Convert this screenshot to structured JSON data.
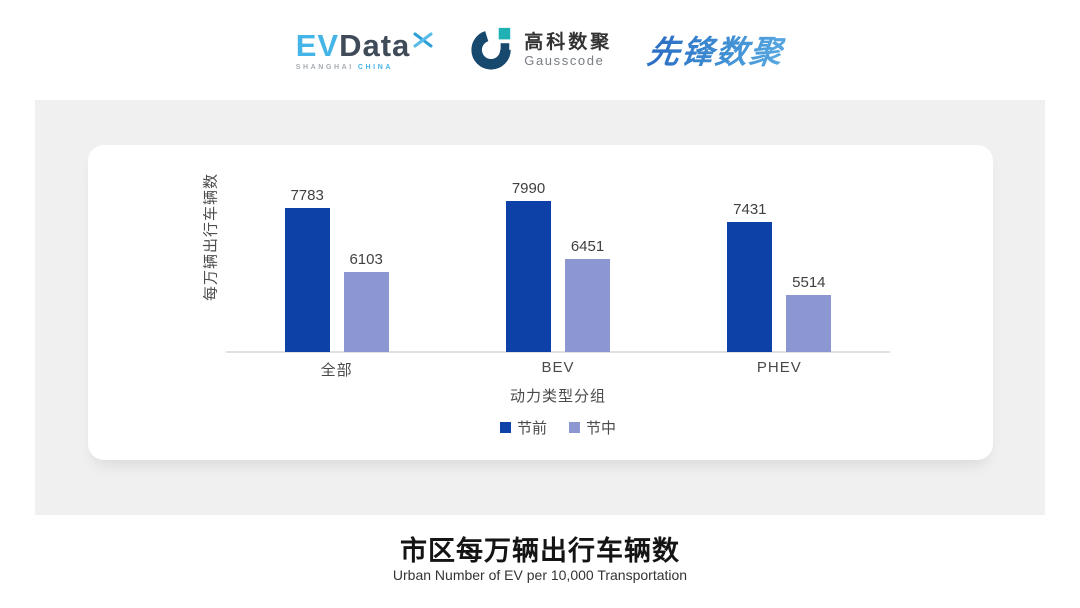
{
  "header": {
    "evdata_logo": {
      "ev": "EV",
      "data": "Data",
      "sub_left": "SHANGHAI",
      "sub_right": "CHINA",
      "accent_color": "#45b5e7",
      "dark_color": "#3f4b58"
    },
    "gausscode_logo": {
      "cn": "高科数聚",
      "en": "Gausscode",
      "navy_color": "#17496e",
      "teal_color": "#1fb1b4"
    },
    "xianfeng_logo": {
      "text": "先锋数聚",
      "color": "#2c6fc5"
    }
  },
  "chart_data": {
    "type": "bar",
    "categories": [
      "全部",
      "BEV",
      "PHEV"
    ],
    "series": [
      {
        "name": "节前",
        "color": "#0d41a8",
        "values": [
          7783,
          7990,
          7431
        ]
      },
      {
        "name": "节中",
        "color": "#8c97d1",
        "values": [
          6103,
          6451,
          5514
        ]
      }
    ],
    "title": "",
    "xlabel": "动力类型分组",
    "ylabel": "每万辆出行车辆数",
    "ylim": [
      4000,
      8400
    ],
    "grid": false,
    "legend_position": "bottom",
    "value_labels": true,
    "axis_line_color": "#e0e0e0"
  },
  "footer": {
    "title": "市区每万辆出行车辆数",
    "subtitle": "Urban Number of EV per 10,000 Transportation"
  }
}
